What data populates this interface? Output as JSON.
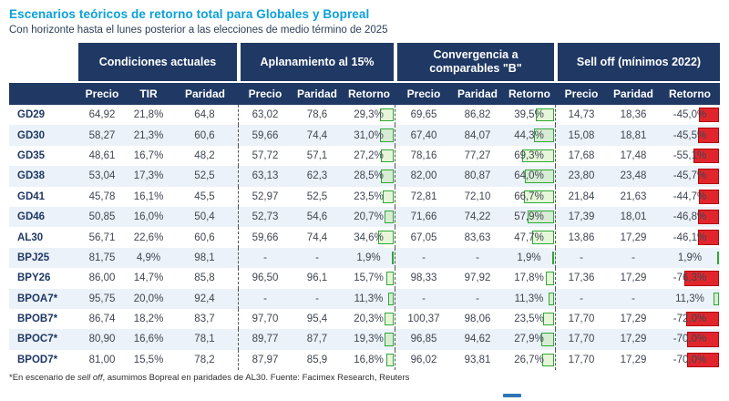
{
  "title": "Escenarios teóricos de retorno total para Globales y Bopreal",
  "subtitle": "Con horizonte hasta el lunes posterior a las elecciones de medio término de 2025",
  "colors": {
    "accent_blue": "#0AA0DB",
    "header_navy": "#1F3864",
    "positive_green": "#2EA836",
    "negative_red": "#E0262C",
    "alt_row": "#ECF2F9"
  },
  "chart_data": {
    "type": "table",
    "groups": [
      {
        "label": "Condiciones actuales",
        "columns": [
          "Precio",
          "TIR",
          "Paridad"
        ]
      },
      {
        "label": "Aplanamiento al 15%",
        "columns": [
          "Precio",
          "Paridad",
          "Retorno"
        ]
      },
      {
        "label": "Convergencia a comparables \"B\"",
        "columns": [
          "Precio",
          "Paridad",
          "Retorno"
        ]
      },
      {
        "label": "Sell off (mínimos 2022)",
        "columns": [
          "Precio",
          "Paridad",
          "Retorno"
        ]
      }
    ],
    "rows": [
      {
        "ticker": "GD29",
        "cells": [
          "64,92",
          "21,8%",
          "64,8",
          "63,02",
          "78,6",
          "29,3%",
          "69,65",
          "86,82",
          "39,5%",
          "14,73",
          "18,36",
          "-45,0%"
        ]
      },
      {
        "ticker": "GD30",
        "cells": [
          "58,27",
          "21,3%",
          "60,6",
          "59,66",
          "74,4",
          "31,0%",
          "67,40",
          "84,07",
          "44,3%",
          "15,08",
          "18,81",
          "-45,5%"
        ]
      },
      {
        "ticker": "GD35",
        "cells": [
          "48,61",
          "16,7%",
          "48,2",
          "57,72",
          "57,1",
          "27,2%",
          "78,16",
          "77,27",
          "69,3%",
          "17,68",
          "17,48",
          "-55,1%"
        ]
      },
      {
        "ticker": "GD38",
        "cells": [
          "53,04",
          "17,3%",
          "52,5",
          "63,13",
          "62,3",
          "28,5%",
          "82,00",
          "80,87",
          "64,0%",
          "23,80",
          "23,48",
          "-45,7%"
        ]
      },
      {
        "ticker": "GD41",
        "cells": [
          "45,78",
          "16,1%",
          "45,5",
          "52,97",
          "52,5",
          "23,5%",
          "72,81",
          "72,10",
          "66,7%",
          "21,84",
          "21,63",
          "-44,7%"
        ]
      },
      {
        "ticker": "GD46",
        "cells": [
          "50,85",
          "16,0%",
          "50,4",
          "52,73",
          "54,6",
          "20,7%",
          "71,66",
          "74,22",
          "57,9%",
          "17,39",
          "18,01",
          "-46,8%"
        ]
      },
      {
        "ticker": "AL30",
        "cells": [
          "56,71",
          "22,6%",
          "60,6",
          "59,66",
          "74,4",
          "34,6%",
          "67,05",
          "83,63",
          "47,7%",
          "13,86",
          "17,29",
          "-46,1%"
        ]
      },
      {
        "ticker": "BPJ25",
        "cells": [
          "81,75",
          "4,9%",
          "98,1",
          "-",
          "-",
          "1,9%",
          "-",
          "-",
          "1,9%",
          "-",
          "-",
          "1,9%"
        ]
      },
      {
        "ticker": "BPY26",
        "cells": [
          "86,00",
          "14,7%",
          "85,8",
          "96,50",
          "96,1",
          "15,7%",
          "98,33",
          "97,92",
          "17,8%",
          "17,36",
          "17,29",
          "-76,3%"
        ]
      },
      {
        "ticker": "BPOA7*",
        "cells": [
          "95,75",
          "20,0%",
          "92,4",
          "-",
          "-",
          "11,3%",
          "-",
          "-",
          "11,3%",
          "-",
          "-",
          "11,3%"
        ]
      },
      {
        "ticker": "BPOB7*",
        "cells": [
          "86,74",
          "18,2%",
          "83,7",
          "97,70",
          "95,4",
          "20,3%",
          "100,37",
          "98,06",
          "23,5%",
          "17,70",
          "17,29",
          "-72,0%"
        ]
      },
      {
        "ticker": "BPOC7*",
        "cells": [
          "80,90",
          "16,6%",
          "78,1",
          "89,77",
          "87,7",
          "19,3%",
          "96,85",
          "94,62",
          "27,9%",
          "17,70",
          "17,29",
          "-70,0%"
        ]
      },
      {
        "ticker": "BPOD7*",
        "cells": [
          "81,00",
          "15,5%",
          "78,2",
          "87,97",
          "85,9",
          "16,8%",
          "96,02",
          "93,81",
          "26,7%",
          "17,70",
          "17,29",
          "-70,0%"
        ]
      }
    ],
    "footnote": {
      "prefix": "*En escenario de ",
      "italic": "sell off",
      "suffix": ", asumimos Bopreal en paridades de AL30. Fuente: Facimex Research, Reuters"
    }
  }
}
